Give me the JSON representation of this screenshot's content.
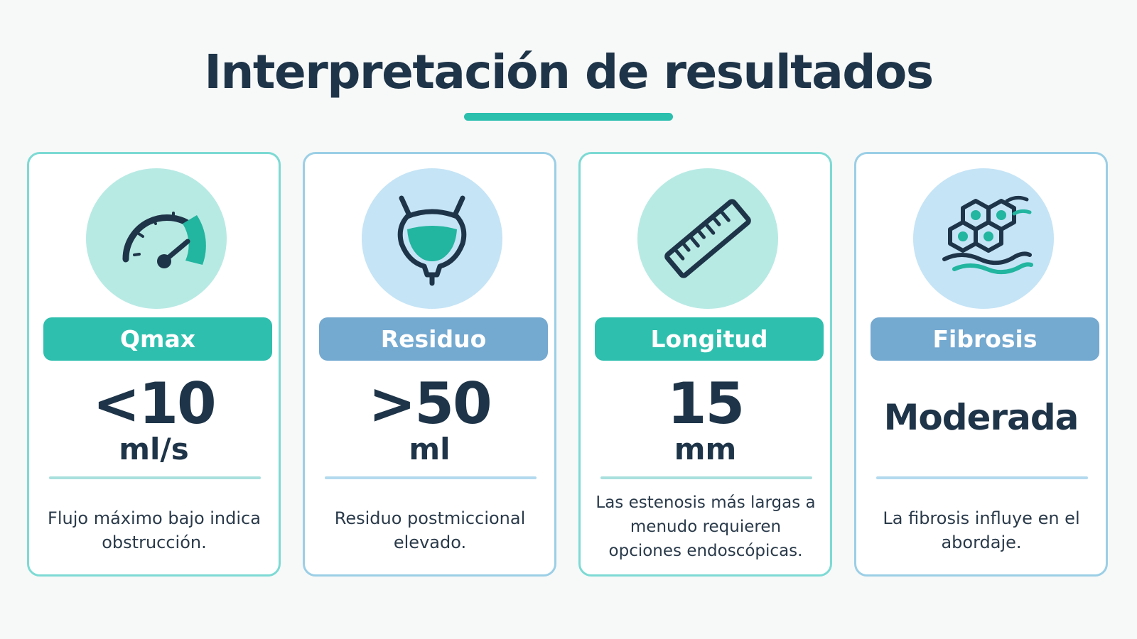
{
  "title": "Interpretación de resultados",
  "colors": {
    "teal": "#2fbfae",
    "blue": "#74a9d0",
    "dark": "#1e3448"
  },
  "cards": [
    {
      "label": "Qmax",
      "value": "<10",
      "unit": "ml/s",
      "description": "Flujo máximo bajo indica obstrucción.",
      "icon": "speedometer-icon",
      "accent": "teal"
    },
    {
      "label": "Residuo",
      "value": ">50",
      "unit": "ml",
      "description": "Residuo postmiccional elevado.",
      "icon": "bladder-icon",
      "accent": "blue"
    },
    {
      "label": "Longitud",
      "value": "15",
      "unit": "mm",
      "description": "Las estenosis más largas a menudo requieren opciones endoscópicas.",
      "icon": "ruler-icon",
      "accent": "teal"
    },
    {
      "label": "Fibrosis",
      "value": "Moderada",
      "description": "La fibrosis influye en el abordaje.",
      "icon": "tissue-cells-icon",
      "accent": "blue"
    }
  ]
}
